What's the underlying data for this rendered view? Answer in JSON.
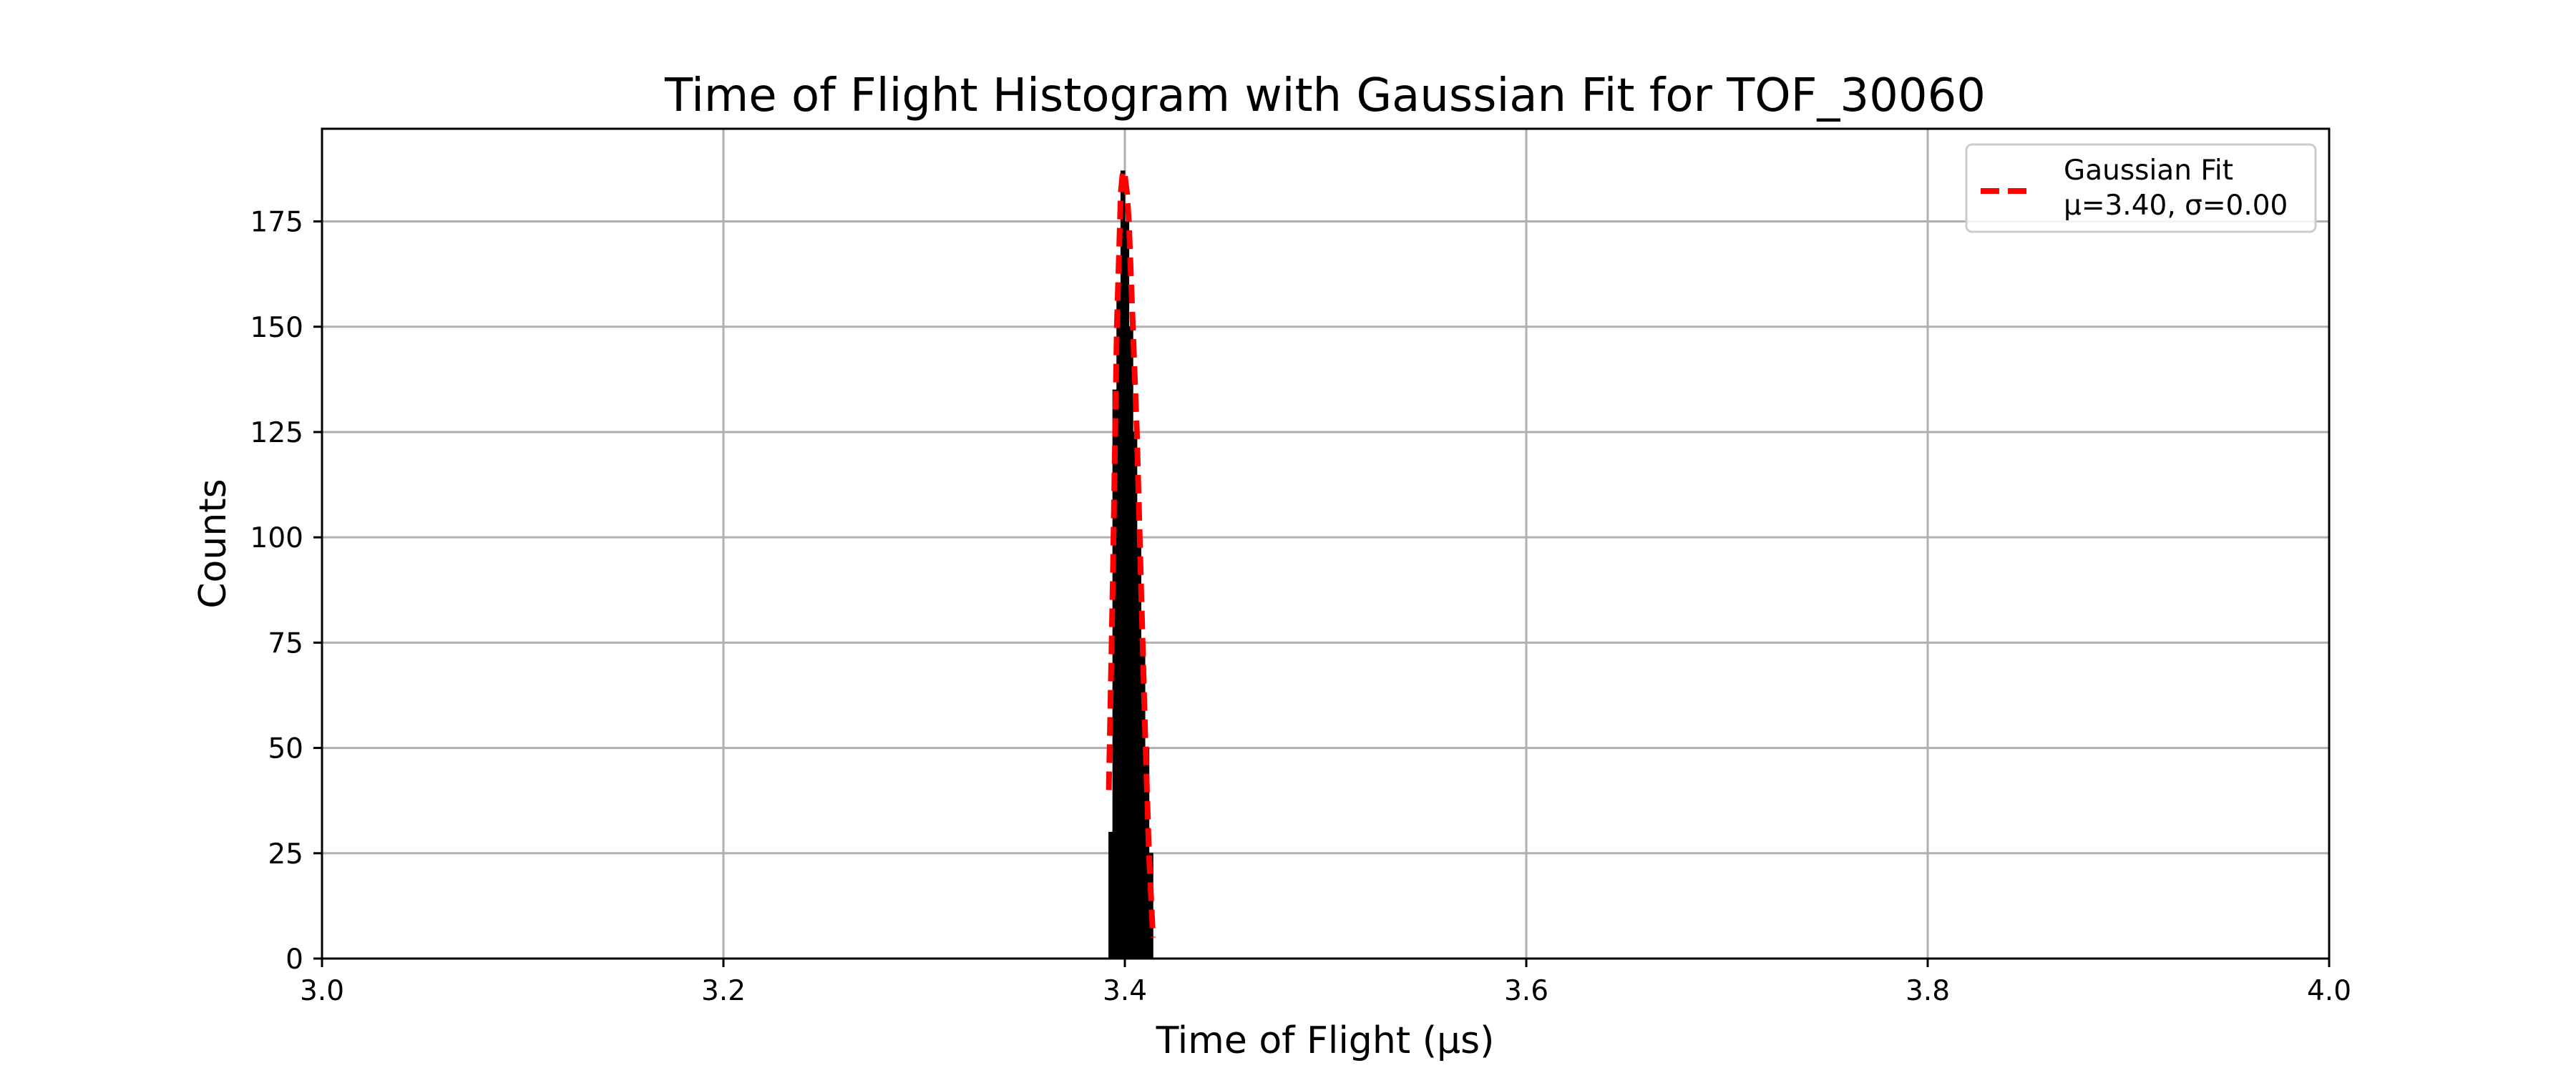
{
  "chart_data": {
    "type": "bar",
    "title": "Time of Flight Histogram with Gaussian Fit for TOF_30060",
    "xlabel": "Time of Flight (μs)",
    "ylabel": "Counts",
    "xlim": [
      3.0,
      4.0
    ],
    "ylim": [
      0,
      197
    ],
    "x_ticks": [
      "3.0",
      "3.2",
      "3.4",
      "3.6",
      "3.8",
      "4.0"
    ],
    "y_ticks": [
      "0",
      "25",
      "50",
      "75",
      "100",
      "125",
      "150",
      "175"
    ],
    "grid": true,
    "legend_position": "top-right",
    "histogram": {
      "color": "#000000",
      "bin_width": 0.002,
      "bins": [
        {
          "x": 3.392,
          "count": 30
        },
        {
          "x": 3.394,
          "count": 135
        },
        {
          "x": 3.396,
          "count": 160
        },
        {
          "x": 3.398,
          "count": 187
        },
        {
          "x": 3.4,
          "count": 175
        },
        {
          "x": 3.402,
          "count": 150
        },
        {
          "x": 3.404,
          "count": 125
        },
        {
          "x": 3.406,
          "count": 100
        },
        {
          "x": 3.408,
          "count": 75
        },
        {
          "x": 3.41,
          "count": 50
        },
        {
          "x": 3.412,
          "count": 25
        }
      ]
    },
    "series": [
      {
        "name": "Gaussian Fit\nμ=3.40, σ=0.00",
        "type": "line",
        "style": "dashed",
        "color": "#ff0000",
        "x": [
          3.392,
          3.394,
          3.396,
          3.398,
          3.399,
          3.4,
          3.401,
          3.402,
          3.404,
          3.406,
          3.408,
          3.41,
          3.412,
          3.414
        ],
        "y": [
          40,
          90,
          150,
          182,
          187,
          186,
          182,
          175,
          150,
          125,
          90,
          55,
          25,
          5
        ]
      }
    ],
    "legend": {
      "line1": "Gaussian Fit",
      "line2": "μ=3.40, σ=0.00"
    }
  }
}
